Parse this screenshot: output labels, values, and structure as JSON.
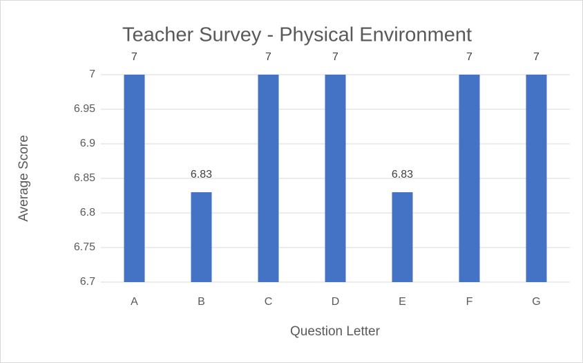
{
  "chart_data": {
    "type": "bar",
    "title": "Teacher Survey - Physical Environment",
    "x_label": "Question Letter",
    "y_label": "Average Score",
    "categories": [
      "A",
      "B",
      "C",
      "D",
      "E",
      "F",
      "G"
    ],
    "values": [
      7,
      6.83,
      7,
      7,
      6.83,
      7,
      7
    ],
    "color": "#4472c4",
    "ylim": [
      6.7,
      7
    ],
    "yticks": [
      6.7,
      6.75,
      6.8,
      6.85,
      6.9,
      6.95,
      7
    ],
    "grid": true
  }
}
